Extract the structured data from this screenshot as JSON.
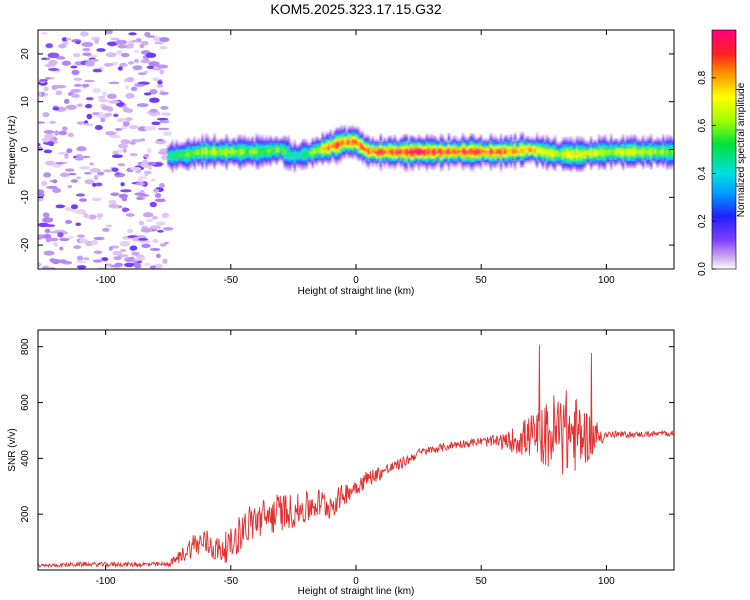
{
  "figure": {
    "title": "KOM5.2025.323.17.15.G32"
  },
  "chart_data": [
    {
      "type": "heatmap",
      "xlabel": "Height of straight line (km)",
      "ylabel": "Frequency (Hz)",
      "xlim": [
        -127,
        127
      ],
      "ylim": [
        -25,
        25
      ],
      "xticks": [
        "-100",
        "-50",
        "0",
        "50",
        "100"
      ],
      "yticks": [
        "-20",
        "-10",
        "0",
        "10",
        "20"
      ],
      "colorbar": {
        "label": "Normalized spectral amplitude",
        "range": [
          0,
          1
        ],
        "ticks": [
          "0.0",
          "0.2",
          "0.4",
          "0.6",
          "0.8"
        ]
      },
      "noise_region_x": [
        -127,
        -75
      ],
      "ridge": {
        "x": [
          -75,
          -60,
          -50,
          -40,
          -30,
          -25,
          -20,
          -10,
          -5,
          0,
          5,
          20,
          40,
          60,
          70,
          80,
          90,
          100,
          110,
          127
        ],
        "freq": [
          -1.5,
          -0.5,
          -0.5,
          -0.5,
          0,
          -1.5,
          -1,
          0.5,
          1.5,
          1.5,
          -0.5,
          -0.5,
          -0.5,
          -0.5,
          0,
          -1,
          -1,
          -0.5,
          -0.5,
          -0.5
        ],
        "peak_amplitude": [
          0.5,
          0.65,
          0.65,
          0.6,
          0.6,
          0.45,
          0.5,
          0.9,
          0.9,
          0.9,
          0.95,
          0.98,
          0.95,
          0.9,
          0.85,
          0.7,
          0.75,
          0.7,
          0.7,
          0.6
        ]
      }
    },
    {
      "type": "line",
      "xlabel": "Height of straight line (km)",
      "ylabel": "SNR (v/v)",
      "xlim": [
        -127,
        127
      ],
      "ylim": [
        0,
        860
      ],
      "xticks": [
        "-100",
        "-50",
        "0",
        "50",
        "100"
      ],
      "yticks": [
        "200",
        "400",
        "600",
        "800"
      ],
      "color": "#e03030",
      "series": [
        {
          "x": [
            -127,
            -110,
            -90,
            -75,
            -70,
            -65,
            -60,
            -55,
            -50,
            -45,
            -40,
            -35,
            -30,
            -25,
            -20,
            -15,
            -10,
            -5,
            0,
            5,
            10,
            15,
            20,
            25,
            30,
            35,
            40,
            50,
            60,
            65,
            70,
            75,
            80,
            85,
            90,
            95,
            100,
            110,
            127
          ],
          "y": [
            15,
            20,
            20,
            20,
            50,
            90,
            100,
            70,
            90,
            150,
            180,
            190,
            210,
            210,
            220,
            240,
            230,
            270,
            300,
            330,
            350,
            370,
            390,
            420,
            430,
            440,
            450,
            460,
            460,
            470,
            480,
            480,
            490,
            490,
            480,
            480,
            485,
            485,
            490
          ],
          "noise": [
            5,
            8,
            8,
            8,
            25,
            45,
            50,
            50,
            60,
            70,
            70,
            70,
            70,
            60,
            60,
            55,
            50,
            40,
            35,
            30,
            25,
            20,
            20,
            15,
            15,
            15,
            15,
            15,
            30,
            60,
            80,
            110,
            160,
            160,
            120,
            70,
            15,
            10,
            10
          ]
        }
      ]
    }
  ]
}
